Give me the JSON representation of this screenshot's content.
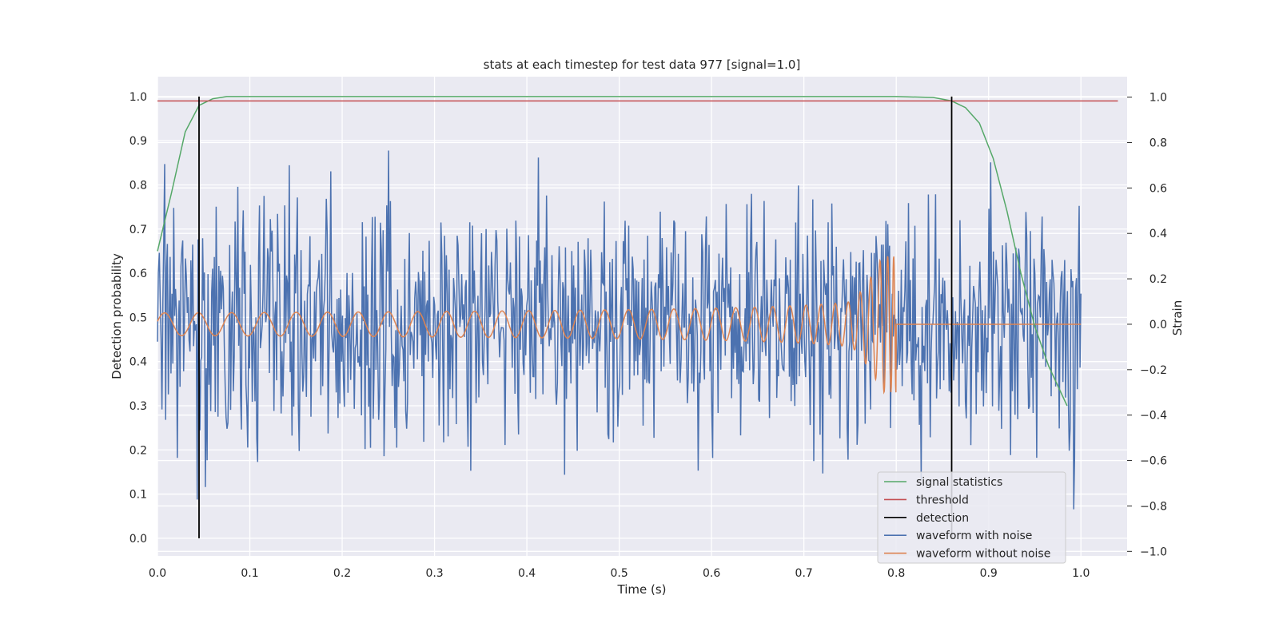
{
  "chart_data": {
    "type": "line",
    "title": "stats at each timestep for test data 977 [signal=1.0]",
    "xlabel": "Time (s)",
    "ylabel_left": "Detection probability",
    "ylabel_right": "Strain",
    "xlim": [
      0.0,
      1.05
    ],
    "ylim_left": [
      -0.04,
      1.045
    ],
    "ylim_right": [
      -1.02,
      1.09
    ],
    "x_ticks": [
      0.0,
      0.1,
      0.2,
      0.3,
      0.4,
      0.5,
      0.6,
      0.7,
      0.8,
      0.9,
      1.0
    ],
    "x_tick_labels": [
      "0.0",
      "0.1",
      "0.2",
      "0.3",
      "0.4",
      "0.5",
      "0.6",
      "0.7",
      "0.8",
      "0.9",
      "1.0"
    ],
    "y_left_ticks": [
      0.0,
      0.1,
      0.2,
      0.3,
      0.4,
      0.5,
      0.6,
      0.7,
      0.8,
      0.9,
      1.0
    ],
    "y_left_tick_labels": [
      "0.0",
      "0.1",
      "0.2",
      "0.3",
      "0.4",
      "0.5",
      "0.6",
      "0.7",
      "0.8",
      "0.9",
      "1.0"
    ],
    "y_right_ticks": [
      -1.0,
      -0.8,
      -0.6,
      -0.4,
      -0.2,
      0.0,
      0.2,
      0.4,
      0.6,
      0.8,
      1.0
    ],
    "y_right_tick_labels": [
      "−1.0",
      "−0.8",
      "−0.6",
      "−0.4",
      "−0.2",
      "0.0",
      "0.2",
      "0.4",
      "0.6",
      "0.8",
      "1.0"
    ],
    "grid": true,
    "legend_position": "bottom-right",
    "background": "#eaeaf2",
    "series": [
      {
        "name": "signal statistics",
        "axis": "left",
        "color": "#55a868",
        "x": [
          0.0,
          0.015,
          0.03,
          0.045,
          0.06,
          0.075,
          0.1,
          0.2,
          0.3,
          0.4,
          0.5,
          0.6,
          0.7,
          0.8,
          0.84,
          0.86,
          0.875,
          0.89,
          0.905,
          0.92,
          0.935,
          0.95,
          0.965,
          0.985
        ],
        "y": [
          0.65,
          0.78,
          0.92,
          0.98,
          0.995,
          1.0,
          1.0,
          1.0,
          1.0,
          1.0,
          1.0,
          1.0,
          1.0,
          1.0,
          0.998,
          0.99,
          0.975,
          0.94,
          0.86,
          0.74,
          0.6,
          0.48,
          0.39,
          0.3
        ]
      },
      {
        "name": "threshold",
        "axis": "left",
        "color": "#c44e52",
        "x": [
          0.0,
          1.04
        ],
        "y": [
          0.99,
          0.99
        ]
      },
      {
        "name": "detection",
        "axis": "left",
        "color": "#000000",
        "x": [
          0.045,
          0.86
        ],
        "y_range": [
          0.0,
          1.0
        ]
      },
      {
        "name": "waveform with noise",
        "axis": "right",
        "color": "#4c72b0",
        "x_range": [
          0.0,
          1.0
        ],
        "points": 1024,
        "amplitude_approx": 0.6,
        "y": []
      },
      {
        "name": "waveform without noise",
        "axis": "right",
        "color": "#dd8452",
        "x_range": [
          0.0,
          1.0
        ],
        "merger_time": 0.8,
        "amplitude_start": 0.05,
        "amplitude_peak": 0.3,
        "y": []
      }
    ]
  }
}
